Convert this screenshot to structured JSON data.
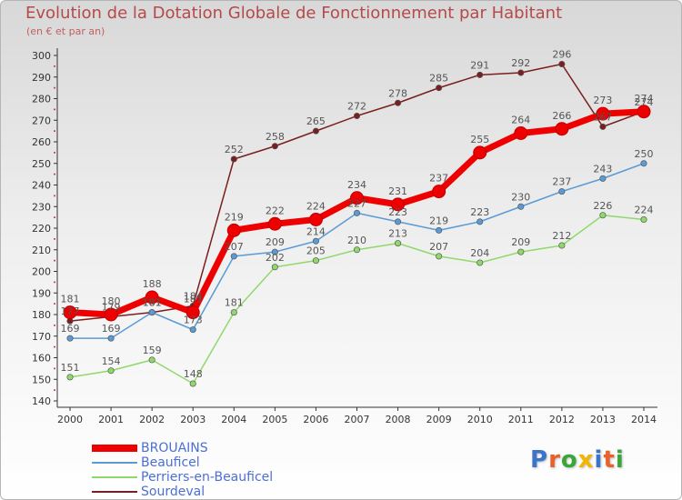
{
  "chart_data": {
    "type": "line",
    "title": "Evolution de la Dotation Globale de Fonctionnement par Habitant",
    "subtitle": "(en € et par an)",
    "xlabel": "",
    "ylabel": "",
    "ylim": [
      140,
      300
    ],
    "yticks": [
      "140",
      "150",
      "160",
      "170",
      "180",
      "190",
      "200",
      "210",
      "220",
      "230",
      "240",
      "250",
      "260",
      "270",
      "280",
      "290",
      "300"
    ],
    "categories": [
      "2000",
      "2001",
      "2002",
      "2003",
      "2004",
      "2005",
      "2006",
      "2007",
      "2008",
      "2009",
      "2010",
      "2011",
      "2012",
      "2013",
      "2014"
    ],
    "series": [
      {
        "name": "Sourdeval",
        "color": "#7a1f1f",
        "values": [
          177,
          179,
          181,
          184,
          252,
          258,
          265,
          272,
          278,
          285,
          291,
          292,
          296,
          267,
          274
        ],
        "labels": [
          "177",
          "179",
          "181",
          "184",
          "252",
          "258",
          "265",
          "272",
          "278",
          "285",
          "291",
          "292",
          "296",
          "267",
          "274"
        ]
      },
      {
        "name": "Perriers-en-Beauficel",
        "color": "#8fd96b",
        "values": [
          151,
          154,
          159,
          148,
          181,
          202,
          205,
          210,
          213,
          207,
          204,
          209,
          212,
          226,
          224
        ],
        "labels": [
          "151",
          "154",
          "159",
          "148",
          "181",
          "202",
          "205",
          "210",
          "213",
          "207",
          "204",
          "209",
          "212",
          "226",
          "224"
        ]
      },
      {
        "name": "Beauficel",
        "color": "#5b9bd5",
        "values": [
          169,
          169,
          181,
          173,
          207,
          209,
          214,
          227,
          223,
          219,
          223,
          230,
          237,
          243,
          250
        ],
        "labels": [
          "169",
          "169",
          "181",
          "173",
          "207",
          "209",
          "214",
          "227",
          "223",
          "219",
          "223",
          "230",
          "237",
          "243",
          "250"
        ]
      },
      {
        "name": "BROUAINS",
        "color": "#ee0000",
        "values": [
          181,
          180,
          188,
          181,
          219,
          222,
          224,
          234,
          231,
          237,
          255,
          264,
          266,
          273,
          274
        ],
        "labels": [
          "181",
          "180",
          "188",
          "181",
          "219",
          "222",
          "224",
          "234",
          "231",
          "237",
          "255",
          "264",
          "266",
          "273",
          "274"
        ]
      }
    ],
    "legend": [
      "BROUAINS",
      "Beauficel",
      "Perriers-en-Beauficel",
      "Sourdeval"
    ],
    "legend_position": "bottom-left",
    "grid": false
  },
  "logo": {
    "text": "Proxiti",
    "letter_colors": [
      "#3b74c9",
      "#e8612c",
      "#3aa63a",
      "#f2b600",
      "#3b74c9",
      "#e8612c",
      "#3aa63a"
    ]
  }
}
